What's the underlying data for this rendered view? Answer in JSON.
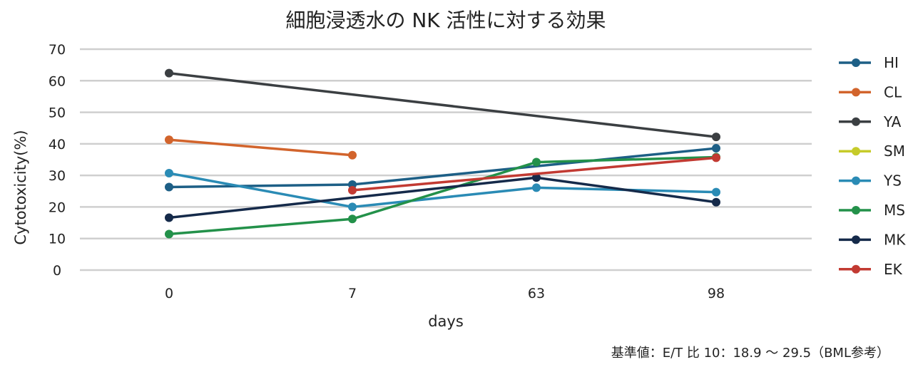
{
  "chart_data": {
    "type": "line",
    "title": "細胞浸透水の NK 活性に対する効果",
    "xlabel": "days",
    "ylabel": "Cytotoxicity(%)",
    "categories": [
      "0",
      "7",
      "63",
      "98"
    ],
    "ylim": [
      0,
      70
    ],
    "yticks": [
      0,
      10,
      20,
      30,
      40,
      50,
      60,
      70
    ],
    "grid": true,
    "legend_position": "right",
    "series": [
      {
        "name": "HI",
        "color": "#1d5f86",
        "values": [
          26.3,
          27.1,
          null,
          38.6
        ]
      },
      {
        "name": "CL",
        "color": "#d2642c",
        "values": [
          41.3,
          36.4,
          null,
          null
        ]
      },
      {
        "name": "YA",
        "color": "#3b3f42",
        "values": [
          62.4,
          null,
          null,
          42.2
        ]
      },
      {
        "name": "SM",
        "color": "#c6cb2a",
        "values": [
          null,
          null,
          null,
          null
        ]
      },
      {
        "name": "YS",
        "color": "#2a8bb5",
        "values": [
          30.7,
          20.0,
          26.1,
          24.7
        ]
      },
      {
        "name": "MS",
        "color": "#23914a",
        "values": [
          11.4,
          16.2,
          34.2,
          35.8
        ]
      },
      {
        "name": "MK",
        "color": "#152a4a",
        "values": [
          16.6,
          null,
          29.3,
          21.5
        ]
      },
      {
        "name": "EK",
        "color": "#c23a32",
        "values": [
          null,
          25.3,
          null,
          35.6
        ]
      }
    ],
    "footnote": "基準値：E/T 比 10：18.9 〜 29.5（BML参考）"
  }
}
